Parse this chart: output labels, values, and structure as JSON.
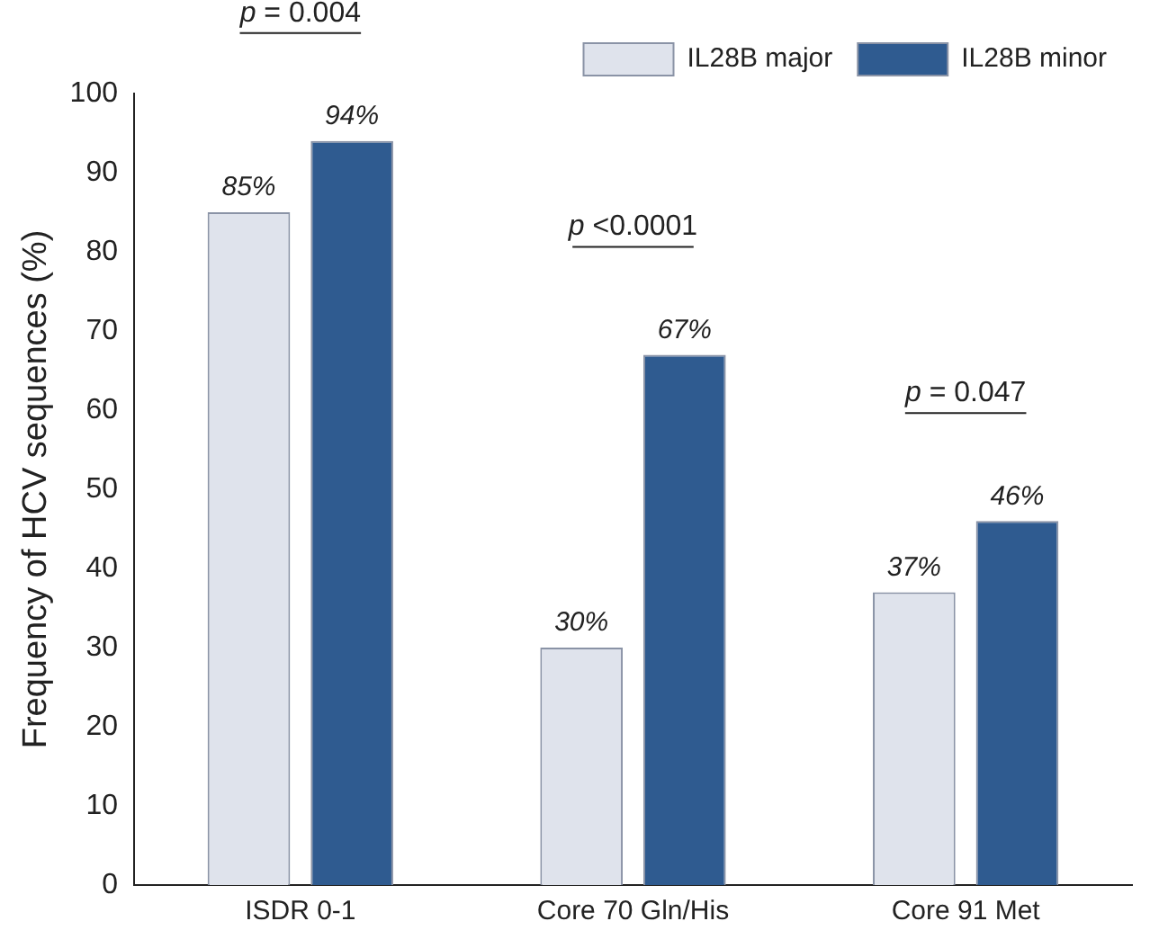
{
  "chart_data": {
    "type": "bar",
    "ylabel": "Frequency of HCV sequences (%)",
    "categories": [
      "ISDR 0-1",
      "Core 70 Gln/His",
      "Core 91 Met"
    ],
    "series": [
      {
        "name": "IL28B major",
        "color": "#dfe3ec",
        "values": [
          85,
          30,
          37
        ],
        "value_labels": [
          "85%",
          "30%",
          "37%"
        ]
      },
      {
        "name": "IL28B minor",
        "color": "#2f5b90",
        "values": [
          94,
          67,
          46
        ],
        "value_labels": [
          "94%",
          "67%",
          "46%"
        ]
      }
    ],
    "ylim": [
      0,
      100
    ],
    "yticks": [
      0,
      10,
      20,
      30,
      40,
      50,
      60,
      70,
      80,
      90,
      100
    ],
    "grid": false,
    "legend": "top right",
    "annotations": [
      "p = 0.004",
      "p <0.0001",
      "p = 0.047"
    ]
  }
}
